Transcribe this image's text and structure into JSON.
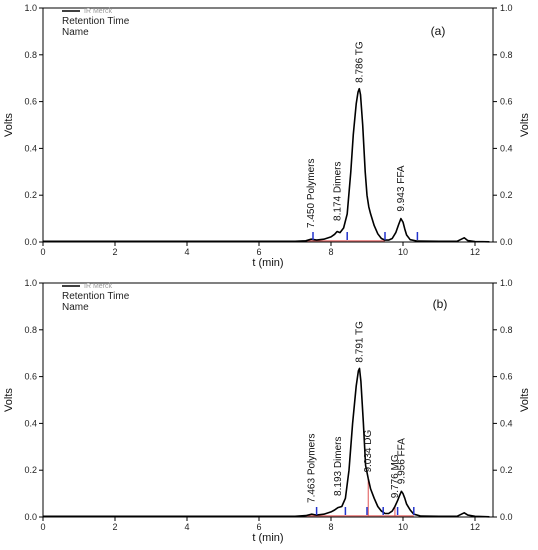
{
  "chart_data": [
    {
      "type": "line",
      "panel_label": "(a)",
      "legend": {
        "series_name": "IR Merck",
        "line1": "Retention Time",
        "line2": "Name"
      },
      "xlabel": "t (min)",
      "ylabel_left": "Volts",
      "ylabel_right": "Volts",
      "xlim": [
        0,
        12.5
      ],
      "ylim": [
        0,
        1.0
      ],
      "x_ticks": [
        "0",
        "2",
        "4",
        "6",
        "8",
        "10",
        "12"
      ],
      "y_ticks": [
        "0.0",
        "0.2",
        "0.4",
        "0.6",
        "0.8",
        "1.0"
      ],
      "series": [
        {
          "x": [
            0,
            7.0,
            7.3,
            7.45,
            7.6,
            7.8,
            8.0,
            8.1,
            8.17,
            8.25,
            8.35,
            8.45,
            8.55,
            8.62,
            8.7,
            8.75,
            8.786,
            8.82,
            8.88,
            8.95,
            9.0,
            9.05,
            9.1,
            9.2,
            9.3,
            9.4,
            9.5,
            9.6,
            9.7,
            9.8,
            9.88,
            9.943,
            10.0,
            10.05,
            10.1,
            10.2,
            10.4,
            11.0,
            11.5,
            11.7,
            11.8,
            12.0,
            12.4
          ],
          "y": [
            0.003,
            0.003,
            0.005,
            0.012,
            0.008,
            0.012,
            0.022,
            0.033,
            0.045,
            0.04,
            0.06,
            0.12,
            0.3,
            0.46,
            0.59,
            0.64,
            0.655,
            0.63,
            0.5,
            0.3,
            0.2,
            0.15,
            0.12,
            0.07,
            0.035,
            0.015,
            0.008,
            0.008,
            0.015,
            0.04,
            0.075,
            0.1,
            0.085,
            0.055,
            0.03,
            0.01,
            0.004,
            0.003,
            0.003,
            0.018,
            0.006,
            0.002,
            0.001
          ]
        }
      ],
      "peaks": [
        {
          "time": 7.45,
          "rt_label": "7.450",
          "name": "Polymers",
          "label_y": 0.06
        },
        {
          "time": 8.174,
          "rt_label": "8.174",
          "name": "Dimers",
          "label_y": 0.09
        },
        {
          "time": 8.786,
          "rt_label": "8.786",
          "name": "TG",
          "label_y": 0.68
        },
        {
          "time": 9.943,
          "rt_label": "9.943",
          "name": "FFA",
          "label_y": 0.13
        }
      ],
      "baseline_segments": [
        [
          7.25,
          8.45
        ],
        [
          8.45,
          9.5
        ]
      ],
      "markers": [
        7.5,
        8.45,
        9.5,
        10.4
      ]
    },
    {
      "type": "line",
      "panel_label": "(b)",
      "legend": {
        "series_name": "IR Merck",
        "line1": "Retention Time",
        "line2": "Name"
      },
      "xlabel": "t (min)",
      "ylabel_left": "Volts",
      "ylabel_right": "Volts",
      "xlim": [
        0,
        12.5
      ],
      "ylim": [
        0,
        1.0
      ],
      "x_ticks": [
        "0",
        "2",
        "4",
        "6",
        "8",
        "10",
        "12"
      ],
      "y_ticks": [
        "0.0",
        "0.2",
        "0.4",
        "0.6",
        "0.8",
        "1.0"
      ],
      "series": [
        {
          "x": [
            0,
            7.0,
            7.3,
            7.463,
            7.6,
            7.8,
            8.0,
            8.1,
            8.193,
            8.3,
            8.4,
            8.5,
            8.6,
            8.7,
            8.76,
            8.791,
            8.83,
            8.9,
            8.96,
            9.034,
            9.1,
            9.2,
            9.3,
            9.4,
            9.5,
            9.6,
            9.7,
            9.776,
            9.85,
            9.9,
            9.956,
            10.0,
            10.05,
            10.1,
            10.2,
            10.3,
            10.5,
            11.0,
            11.5,
            11.7,
            11.8,
            12.0,
            12.4
          ],
          "y": [
            0.003,
            0.003,
            0.006,
            0.012,
            0.008,
            0.012,
            0.022,
            0.03,
            0.04,
            0.045,
            0.08,
            0.2,
            0.4,
            0.56,
            0.625,
            0.635,
            0.58,
            0.4,
            0.22,
            0.165,
            0.12,
            0.08,
            0.045,
            0.025,
            0.015,
            0.015,
            0.025,
            0.045,
            0.07,
            0.09,
            0.11,
            0.1,
            0.08,
            0.055,
            0.03,
            0.012,
            0.004,
            0.003,
            0.003,
            0.018,
            0.008,
            0.003,
            0.001
          ]
        }
      ],
      "peaks": [
        {
          "time": 7.463,
          "rt_label": "7.463",
          "name": "Polymers",
          "label_y": 0.06
        },
        {
          "time": 8.193,
          "rt_label": "8.193",
          "name": "Dimers",
          "label_y": 0.09
        },
        {
          "time": 8.791,
          "rt_label": "8.791",
          "name": "TG",
          "label_y": 0.66
        },
        {
          "time": 9.034,
          "rt_label": "9.034",
          "name": "DG",
          "label_y": 0.19
        },
        {
          "time": 9.776,
          "rt_label": "9.776",
          "name": "MG",
          "label_y": 0.08
        },
        {
          "time": 9.956,
          "rt_label": "9.956",
          "name": "FFA",
          "label_y": 0.14
        }
      ],
      "baseline_segments": [
        [
          7.25,
          8.4
        ],
        [
          8.4,
          9.45
        ],
        [
          9.45,
          10.3
        ]
      ],
      "markers": [
        7.6,
        8.4,
        9.0,
        9.45,
        9.85,
        10.3
      ]
    }
  ]
}
